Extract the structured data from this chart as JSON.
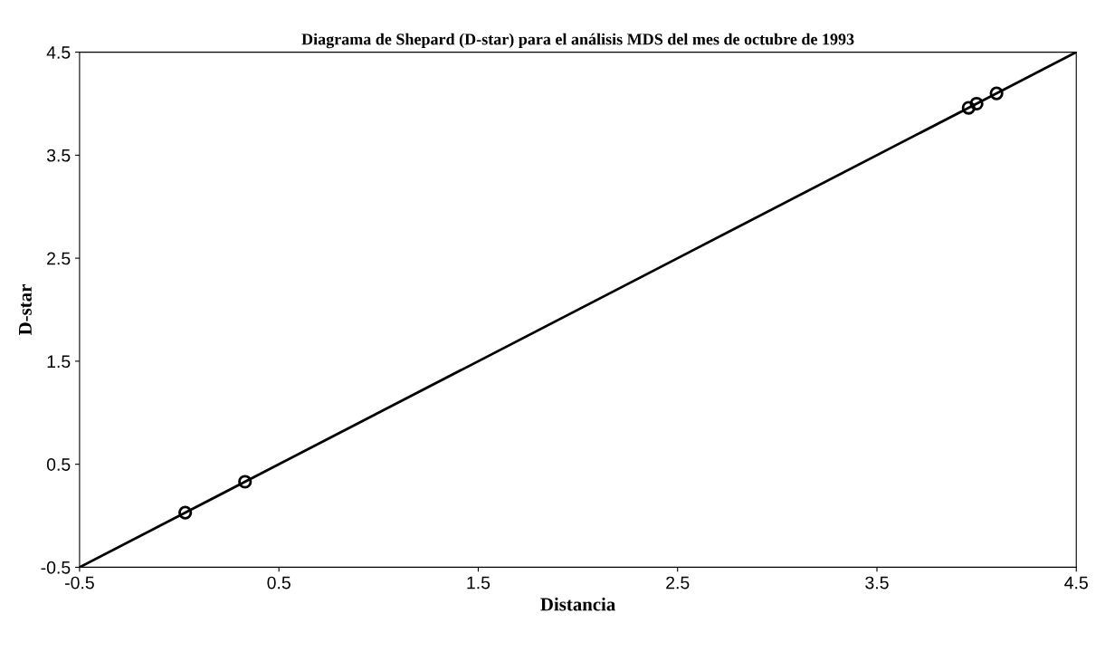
{
  "chart_data": {
    "type": "scatter",
    "title": "Diagrama de Shepard (D-star) para el análisis MDS del mes de octubre de 1993",
    "xlabel": "Distancia",
    "ylabel": "D-star",
    "series": [
      {
        "color": "#000000",
        "marker": "circle",
        "x": [
          0.03,
          0.33,
          3.96,
          4.0,
          4.1
        ],
        "values": [
          0.03,
          0.33,
          3.96,
          4.0,
          4.1
        ]
      },
      {
        "type": "line",
        "color": "#000000",
        "marker": "none",
        "x": [
          -0.5,
          4.5
        ],
        "values": [
          -0.5,
          4.5
        ]
      }
    ],
    "xlim": [
      -0.5,
      4.5
    ],
    "ylim": [
      -0.5,
      4.5
    ],
    "xticks": [
      -0.5,
      0.5,
      1.5,
      2.5,
      3.5,
      4.5
    ],
    "yticks": [
      -0.5,
      0.5,
      1.5,
      2.5,
      3.5,
      4.5
    ],
    "grid": false,
    "legend": false
  }
}
